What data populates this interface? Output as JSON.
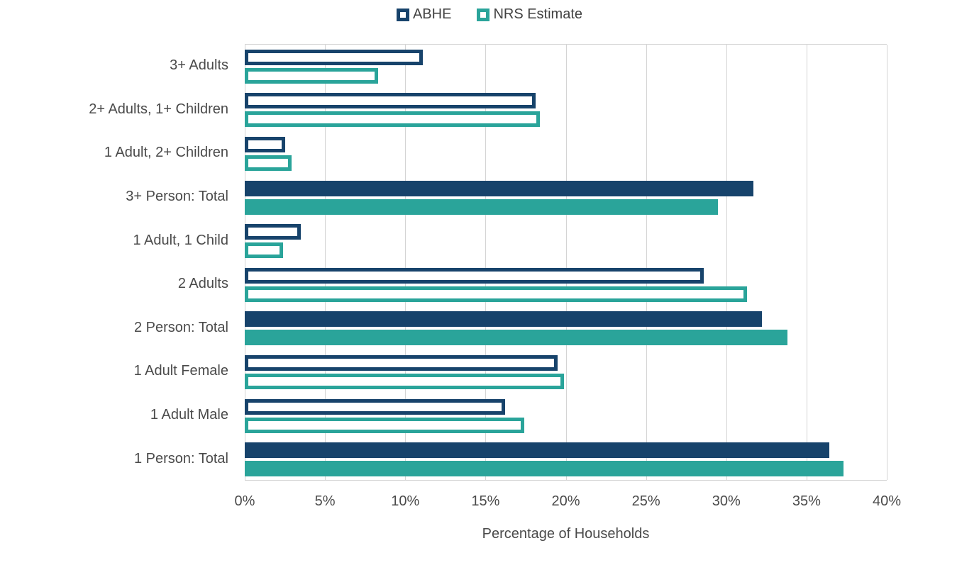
{
  "chart_data": {
    "type": "bar",
    "orientation": "horizontal",
    "title": "",
    "xlabel": "Percentage of Households",
    "x_ticks": [
      "0%",
      "5%",
      "10%",
      "15%",
      "20%",
      "25%",
      "30%",
      "35%",
      "40%"
    ],
    "xlim": [
      0,
      40
    ],
    "grid": true,
    "legend_position": "top-center",
    "categories": [
      "3+ Adults",
      "2+ Adults, 1+ Children",
      "1 Adult, 2+ Children",
      "3+ Person: Total",
      "1 Adult, 1 Child",
      "2 Adults",
      "2 Person: Total",
      "1 Adult Female",
      "1 Adult Male",
      "1 Person: Total"
    ],
    "series": [
      {
        "name": "ABHE",
        "color": "#17436B",
        "values": [
          11.1,
          18.1,
          2.5,
          31.7,
          3.5,
          28.6,
          32.2,
          19.5,
          16.2,
          36.4
        ]
      },
      {
        "name": "NRS Estimate",
        "color": "#2AA49A",
        "values": [
          8.3,
          18.4,
          2.9,
          29.5,
          2.4,
          31.3,
          33.8,
          19.9,
          17.4,
          37.3
        ]
      }
    ],
    "bar_style": {
      "solid_fill_categories": [
        "3+ Person: Total",
        "2 Person: Total",
        "1 Person: Total"
      ],
      "other_categories": "outlined (hollow, white fill)"
    },
    "gridline_color": "#d4d4d4",
    "text_color": "#4a4a4a"
  }
}
